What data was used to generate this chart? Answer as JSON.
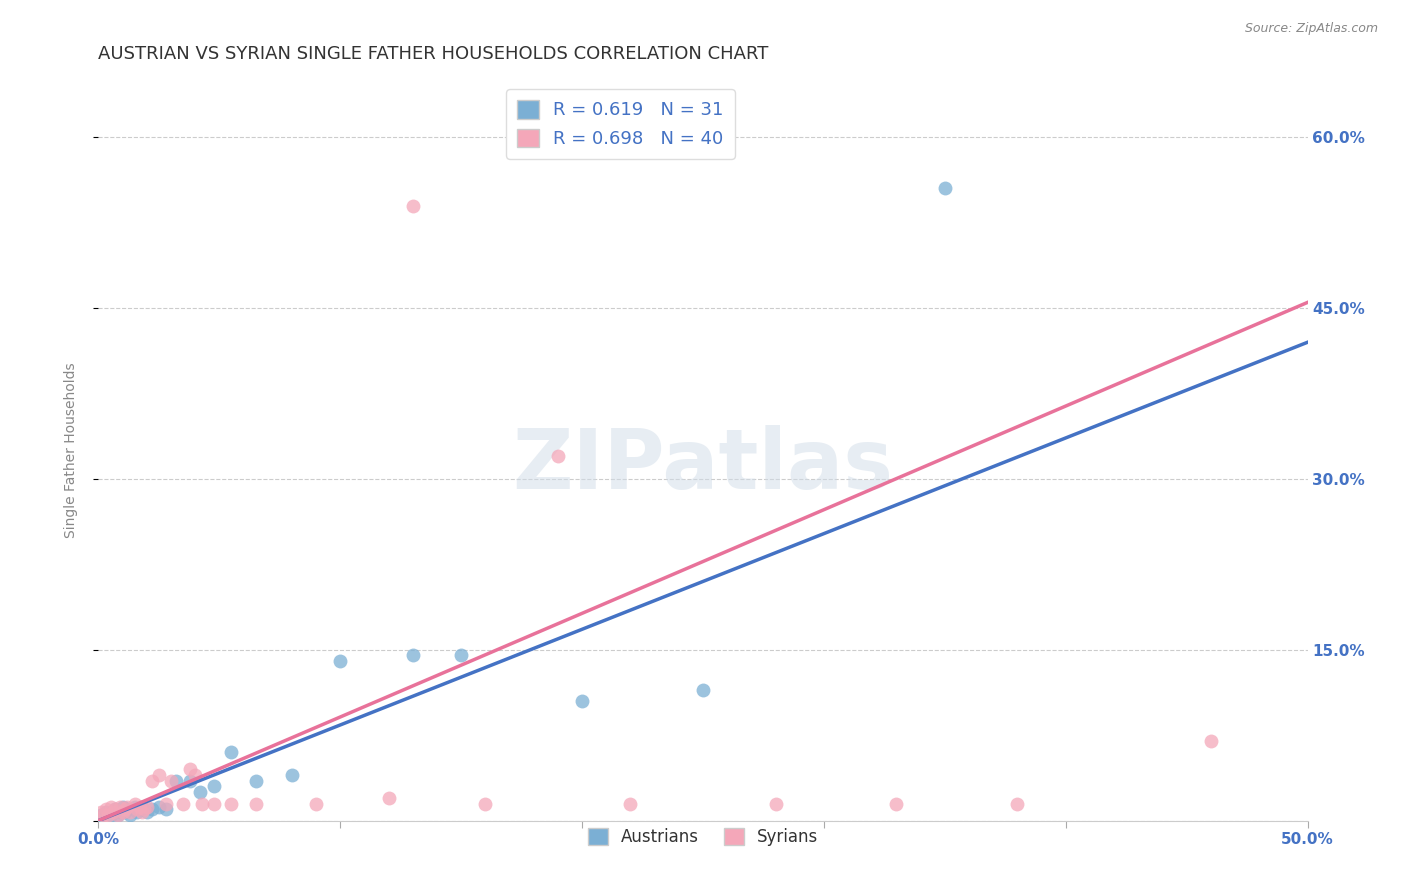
{
  "title": "AUSTRIAN VS SYRIAN SINGLE FATHER HOUSEHOLDS CORRELATION CHART",
  "source": "Source: ZipAtlas.com",
  "ylabel": "Single Father Households",
  "watermark": "ZIPatlas",
  "xlim": [
    0.0,
    0.5
  ],
  "ylim": [
    0.0,
    0.65
  ],
  "ytick_labels_right": [
    "",
    "15.0%",
    "30.0%",
    "45.0%",
    "60.0%"
  ],
  "ytick_positions_right": [
    0.0,
    0.15,
    0.3,
    0.45,
    0.6
  ],
  "grid_color": "#cccccc",
  "background_color": "#ffffff",
  "austrians": {
    "color": "#7bafd4",
    "fill_color": "#aacce8",
    "R": 0.619,
    "N": 31,
    "scatter_x": [
      0.001,
      0.003,
      0.005,
      0.007,
      0.008,
      0.009,
      0.01,
      0.011,
      0.012,
      0.013,
      0.015,
      0.016,
      0.017,
      0.018,
      0.02,
      0.022,
      0.025,
      0.028,
      0.032,
      0.038,
      0.042,
      0.048,
      0.055,
      0.065,
      0.08,
      0.1,
      0.13,
      0.15,
      0.2,
      0.25,
      0.35
    ],
    "scatter_y": [
      0.005,
      0.008,
      0.005,
      0.01,
      0.005,
      0.008,
      0.012,
      0.008,
      0.01,
      0.005,
      0.012,
      0.008,
      0.01,
      0.012,
      0.008,
      0.01,
      0.012,
      0.01,
      0.035,
      0.035,
      0.025,
      0.03,
      0.06,
      0.035,
      0.04,
      0.14,
      0.145,
      0.145,
      0.105,
      0.115,
      0.555
    ],
    "line_color": "#4472c4",
    "line_start_x": 0.0,
    "line_start_y": 0.0,
    "line_end_x": 0.5,
    "line_end_y": 0.42
  },
  "syrians": {
    "color": "#f4a7b9",
    "fill_color": "#f9c5d3",
    "R": 0.698,
    "N": 40,
    "scatter_x": [
      0.001,
      0.002,
      0.003,
      0.004,
      0.005,
      0.006,
      0.007,
      0.008,
      0.009,
      0.01,
      0.011,
      0.012,
      0.013,
      0.015,
      0.016,
      0.017,
      0.018,
      0.019,
      0.02,
      0.022,
      0.025,
      0.028,
      0.03,
      0.035,
      0.038,
      0.04,
      0.043,
      0.048,
      0.055,
      0.065,
      0.09,
      0.12,
      0.13,
      0.16,
      0.19,
      0.22,
      0.28,
      0.33,
      0.38,
      0.46
    ],
    "scatter_y": [
      0.008,
      0.005,
      0.01,
      0.005,
      0.012,
      0.008,
      0.01,
      0.005,
      0.012,
      0.008,
      0.01,
      0.012,
      0.008,
      0.015,
      0.01,
      0.012,
      0.008,
      0.01,
      0.012,
      0.035,
      0.04,
      0.015,
      0.035,
      0.015,
      0.045,
      0.04,
      0.015,
      0.015,
      0.015,
      0.015,
      0.015,
      0.02,
      0.54,
      0.015,
      0.32,
      0.015,
      0.015,
      0.015,
      0.015,
      0.07
    ],
    "line_color": "#e8729a",
    "line_start_x": 0.0,
    "line_start_y": 0.0,
    "line_end_x": 0.5,
    "line_end_y": 0.455
  },
  "title_fontsize": 13,
  "axis_label_fontsize": 10,
  "tick_fontsize": 11,
  "right_tick_color": "#4472c4"
}
